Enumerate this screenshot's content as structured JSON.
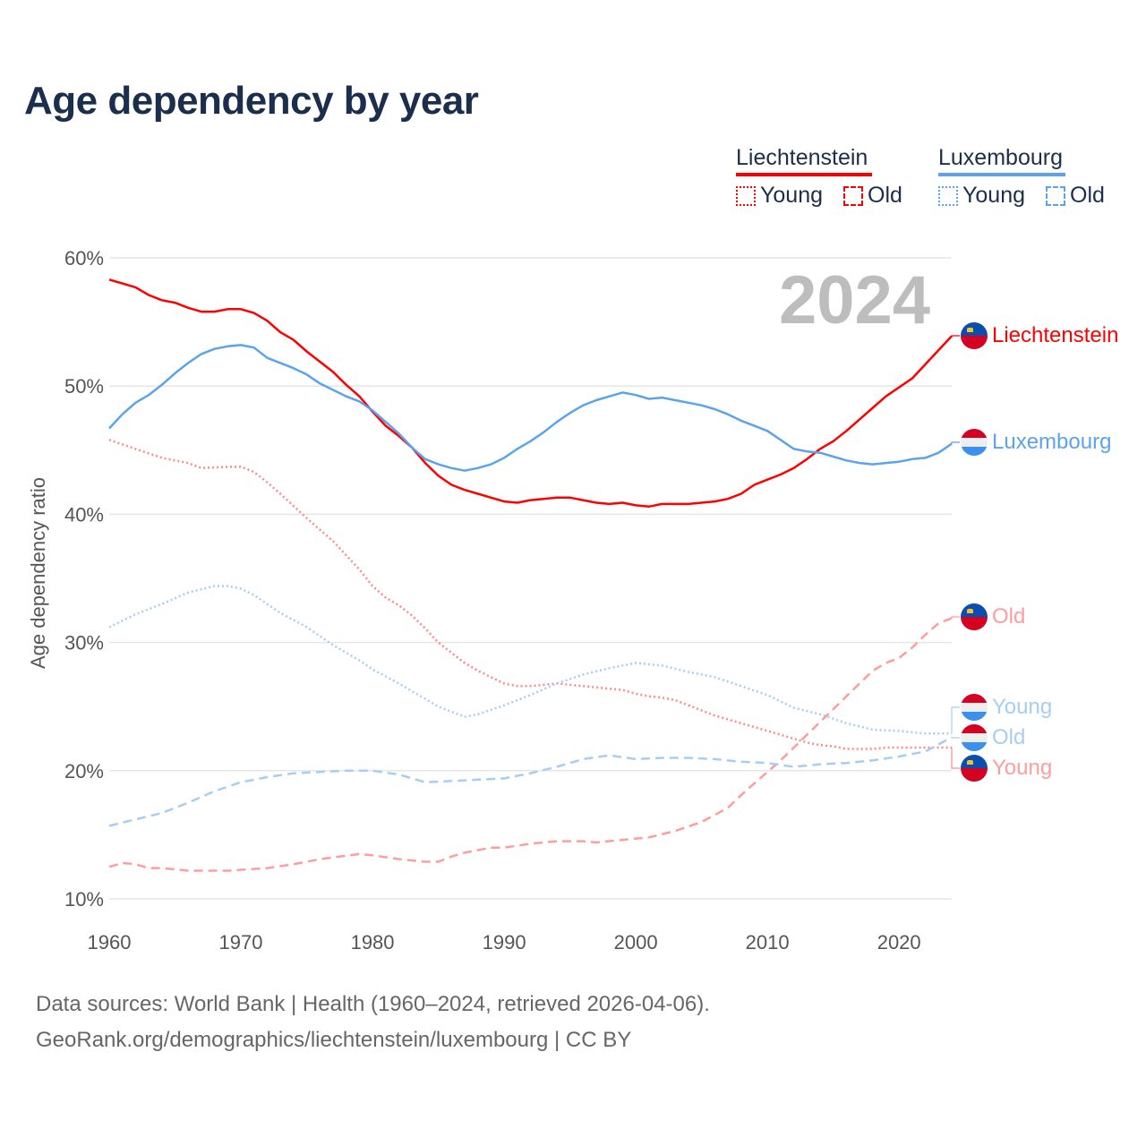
{
  "title": "Age dependency by year",
  "year_display": "2024",
  "legend": {
    "countries": [
      {
        "name": "Liechtenstein",
        "color": "#ff0000",
        "young": "Young",
        "old": "Old"
      },
      {
        "name": "Luxembourg",
        "color": "#5ba4ec",
        "young": "Young",
        "old": "Old"
      }
    ]
  },
  "end_labels": {
    "li_total": "Liechtenstein",
    "lu_total": "Luxembourg",
    "li_old": "Old",
    "lu_young": "Young",
    "lu_old": "Old",
    "li_young": "Young"
  },
  "footer": {
    "line1": "Data sources: World Bank | Health (1960–2024, retrieved 2026-04-06).",
    "line2": "GeoRank.org/demographics/liechtenstein/luxembourg | CC BY"
  },
  "chart_data": {
    "type": "line",
    "title": "Age dependency by year",
    "xlabel": "",
    "ylabel": "Age dependency ratio",
    "xlim": [
      1960,
      2024
    ],
    "ylim": [
      10,
      60
    ],
    "x_ticks": [
      "1960",
      "1970",
      "1980",
      "1990",
      "2000",
      "2010",
      "2020"
    ],
    "y_ticks": [
      "10%",
      "20%",
      "30%",
      "40%",
      "50%",
      "60%"
    ],
    "grid": true,
    "legend_position": "top-right",
    "series": [
      {
        "id": "li_total",
        "name": "Liechtenstein",
        "color": "#ff0000",
        "dash": "solid",
        "points": [
          [
            1960,
            58.3
          ],
          [
            1961,
            58.0
          ],
          [
            1962,
            57.7
          ],
          [
            1963,
            57.1
          ],
          [
            1964,
            56.7
          ],
          [
            1965,
            56.5
          ],
          [
            1966,
            56.1
          ],
          [
            1967,
            55.8
          ],
          [
            1968,
            55.8
          ],
          [
            1969,
            56.0
          ],
          [
            1970,
            56.0
          ],
          [
            1971,
            55.7
          ],
          [
            1972,
            55.1
          ],
          [
            1973,
            54.2
          ],
          [
            1974,
            53.6
          ],
          [
            1975,
            52.7
          ],
          [
            1976,
            51.9
          ],
          [
            1977,
            51.1
          ],
          [
            1978,
            50.1
          ],
          [
            1979,
            49.2
          ],
          [
            1980,
            48.0
          ],
          [
            1981,
            46.9
          ],
          [
            1982,
            46.1
          ],
          [
            1983,
            45.2
          ],
          [
            1984,
            44.0
          ],
          [
            1985,
            43.0
          ],
          [
            1986,
            42.3
          ],
          [
            1987,
            41.9
          ],
          [
            1988,
            41.6
          ],
          [
            1989,
            41.3
          ],
          [
            1990,
            41.0
          ],
          [
            1991,
            40.9
          ],
          [
            1992,
            41.1
          ],
          [
            1993,
            41.2
          ],
          [
            1994,
            41.3
          ],
          [
            1995,
            41.3
          ],
          [
            1996,
            41.1
          ],
          [
            1997,
            40.9
          ],
          [
            1998,
            40.8
          ],
          [
            1999,
            40.9
          ],
          [
            2000,
            40.7
          ],
          [
            2001,
            40.6
          ],
          [
            2002,
            40.8
          ],
          [
            2003,
            40.8
          ],
          [
            2004,
            40.8
          ],
          [
            2005,
            40.9
          ],
          [
            2006,
            41.0
          ],
          [
            2007,
            41.2
          ],
          [
            2008,
            41.6
          ],
          [
            2009,
            42.3
          ],
          [
            2010,
            42.7
          ],
          [
            2011,
            43.1
          ],
          [
            2012,
            43.6
          ],
          [
            2013,
            44.3
          ],
          [
            2014,
            45.1
          ],
          [
            2015,
            45.7
          ],
          [
            2016,
            46.5
          ],
          [
            2017,
            47.4
          ],
          [
            2018,
            48.3
          ],
          [
            2019,
            49.2
          ],
          [
            2020,
            49.9
          ],
          [
            2021,
            50.6
          ],
          [
            2022,
            51.7
          ],
          [
            2023,
            52.8
          ],
          [
            2024,
            53.9
          ]
        ]
      },
      {
        "id": "lu_total",
        "name": "Luxembourg",
        "color": "#5ba4ec",
        "dash": "solid",
        "points": [
          [
            1960,
            46.7
          ],
          [
            1961,
            47.8
          ],
          [
            1962,
            48.7
          ],
          [
            1963,
            49.3
          ],
          [
            1964,
            50.1
          ],
          [
            1965,
            51.0
          ],
          [
            1966,
            51.8
          ],
          [
            1967,
            52.5
          ],
          [
            1968,
            52.9
          ],
          [
            1969,
            53.1
          ],
          [
            1970,
            53.2
          ],
          [
            1971,
            53.0
          ],
          [
            1972,
            52.2
          ],
          [
            1973,
            51.8
          ],
          [
            1974,
            51.4
          ],
          [
            1975,
            50.9
          ],
          [
            1976,
            50.2
          ],
          [
            1977,
            49.7
          ],
          [
            1978,
            49.2
          ],
          [
            1979,
            48.8
          ],
          [
            1980,
            48.1
          ],
          [
            1981,
            47.2
          ],
          [
            1982,
            46.3
          ],
          [
            1983,
            45.2
          ],
          [
            1984,
            44.3
          ],
          [
            1985,
            43.9
          ],
          [
            1986,
            43.6
          ],
          [
            1987,
            43.4
          ],
          [
            1988,
            43.6
          ],
          [
            1989,
            43.9
          ],
          [
            1990,
            44.4
          ],
          [
            1991,
            45.1
          ],
          [
            1992,
            45.7
          ],
          [
            1993,
            46.4
          ],
          [
            1994,
            47.2
          ],
          [
            1995,
            47.9
          ],
          [
            1996,
            48.5
          ],
          [
            1997,
            48.9
          ],
          [
            1998,
            49.2
          ],
          [
            1999,
            49.5
          ],
          [
            2000,
            49.3
          ],
          [
            2001,
            49.0
          ],
          [
            2002,
            49.1
          ],
          [
            2003,
            48.9
          ],
          [
            2004,
            48.7
          ],
          [
            2005,
            48.5
          ],
          [
            2006,
            48.2
          ],
          [
            2007,
            47.8
          ],
          [
            2008,
            47.3
          ],
          [
            2009,
            46.9
          ],
          [
            2010,
            46.5
          ],
          [
            2011,
            45.8
          ],
          [
            2012,
            45.1
          ],
          [
            2013,
            44.9
          ],
          [
            2014,
            44.8
          ],
          [
            2015,
            44.5
          ],
          [
            2016,
            44.2
          ],
          [
            2017,
            44.0
          ],
          [
            2018,
            43.9
          ],
          [
            2019,
            44.0
          ],
          [
            2020,
            44.1
          ],
          [
            2021,
            44.3
          ],
          [
            2022,
            44.4
          ],
          [
            2023,
            44.8
          ],
          [
            2024,
            45.5
          ]
        ]
      },
      {
        "id": "li_young",
        "name": "Liechtenstein Young",
        "color": "#ff8a8a",
        "dash": "dotted",
        "points": [
          [
            1960,
            45.8
          ],
          [
            1962,
            45.1
          ],
          [
            1964,
            44.4
          ],
          [
            1966,
            44.0
          ],
          [
            1967,
            43.6
          ],
          [
            1969,
            43.7
          ],
          [
            1970,
            43.7
          ],
          [
            1971,
            43.3
          ],
          [
            1972,
            42.5
          ],
          [
            1973,
            41.6
          ],
          [
            1975,
            39.7
          ],
          [
            1977,
            37.9
          ],
          [
            1979,
            35.7
          ],
          [
            1980,
            34.4
          ],
          [
            1981,
            33.5
          ],
          [
            1982,
            32.9
          ],
          [
            1983,
            32.1
          ],
          [
            1984,
            31.1
          ],
          [
            1985,
            30.0
          ],
          [
            1986,
            29.2
          ],
          [
            1987,
            28.4
          ],
          [
            1988,
            27.8
          ],
          [
            1989,
            27.3
          ],
          [
            1990,
            26.8
          ],
          [
            1991,
            26.6
          ],
          [
            1992,
            26.6
          ],
          [
            1994,
            26.8
          ],
          [
            1995,
            26.7
          ],
          [
            1996,
            26.6
          ],
          [
            1998,
            26.4
          ],
          [
            1999,
            26.3
          ],
          [
            2000,
            26.0
          ],
          [
            2001,
            25.8
          ],
          [
            2002,
            25.7
          ],
          [
            2003,
            25.5
          ],
          [
            2004,
            25.1
          ],
          [
            2005,
            24.7
          ],
          [
            2006,
            24.3
          ],
          [
            2007,
            24.0
          ],
          [
            2008,
            23.7
          ],
          [
            2009,
            23.4
          ],
          [
            2010,
            23.1
          ],
          [
            2011,
            22.8
          ],
          [
            2012,
            22.5
          ],
          [
            2013,
            22.2
          ],
          [
            2014,
            22.0
          ],
          [
            2015,
            21.9
          ],
          [
            2016,
            21.7
          ],
          [
            2018,
            21.7
          ],
          [
            2019,
            21.8
          ],
          [
            2024,
            21.8
          ]
        ]
      },
      {
        "id": "li_old",
        "name": "Liechtenstein Old",
        "color": "#ff9d9d",
        "dash": "dashed",
        "points": [
          [
            1960,
            12.5
          ],
          [
            1961,
            12.8
          ],
          [
            1962,
            12.7
          ],
          [
            1963,
            12.4
          ],
          [
            1964,
            12.4
          ],
          [
            1966,
            12.2
          ],
          [
            1969,
            12.2
          ],
          [
            1972,
            12.4
          ],
          [
            1974,
            12.7
          ],
          [
            1976,
            13.1
          ],
          [
            1979,
            13.5
          ],
          [
            1980,
            13.4
          ],
          [
            1982,
            13.1
          ],
          [
            1984,
            12.9
          ],
          [
            1985,
            12.9
          ],
          [
            1986,
            13.3
          ],
          [
            1987,
            13.6
          ],
          [
            1989,
            14.0
          ],
          [
            1990,
            14.0
          ],
          [
            1992,
            14.3
          ],
          [
            1994,
            14.5
          ],
          [
            1996,
            14.5
          ],
          [
            1997,
            14.4
          ],
          [
            1999,
            14.6
          ],
          [
            2001,
            14.8
          ],
          [
            2003,
            15.3
          ],
          [
            2005,
            16.0
          ],
          [
            2007,
            17.1
          ],
          [
            2008,
            18.1
          ],
          [
            2009,
            19.0
          ],
          [
            2010,
            19.9
          ],
          [
            2011,
            20.8
          ],
          [
            2012,
            21.8
          ],
          [
            2013,
            22.8
          ],
          [
            2014,
            23.8
          ],
          [
            2015,
            24.8
          ],
          [
            2016,
            25.8
          ],
          [
            2017,
            26.8
          ],
          [
            2018,
            27.8
          ],
          [
            2019,
            28.4
          ],
          [
            2020,
            28.8
          ],
          [
            2021,
            29.6
          ],
          [
            2022,
            30.6
          ],
          [
            2023,
            31.5
          ],
          [
            2024,
            31.9
          ]
        ]
      },
      {
        "id": "lu_young",
        "name": "Luxembourg Young",
        "color": "#a8cdf2",
        "dash": "dotted",
        "points": [
          [
            1960,
            31.2
          ],
          [
            1962,
            32.2
          ],
          [
            1964,
            33.0
          ],
          [
            1966,
            33.9
          ],
          [
            1968,
            34.4
          ],
          [
            1969,
            34.4
          ],
          [
            1970,
            34.2
          ],
          [
            1971,
            33.7
          ],
          [
            1972,
            33.0
          ],
          [
            1973,
            32.3
          ],
          [
            1975,
            31.2
          ],
          [
            1977,
            29.8
          ],
          [
            1979,
            28.6
          ],
          [
            1980,
            27.9
          ],
          [
            1982,
            26.8
          ],
          [
            1984,
            25.6
          ],
          [
            1985,
            25.0
          ],
          [
            1987,
            24.2
          ],
          [
            1988,
            24.4
          ],
          [
            1990,
            25.1
          ],
          [
            1992,
            25.9
          ],
          [
            1994,
            26.8
          ],
          [
            1996,
            27.5
          ],
          [
            1998,
            28.0
          ],
          [
            2000,
            28.4
          ],
          [
            2002,
            28.2
          ],
          [
            2004,
            27.7
          ],
          [
            2006,
            27.3
          ],
          [
            2008,
            26.6
          ],
          [
            2010,
            25.9
          ],
          [
            2012,
            24.9
          ],
          [
            2014,
            24.4
          ],
          [
            2016,
            23.7
          ],
          [
            2018,
            23.2
          ],
          [
            2020,
            23.1
          ],
          [
            2022,
            22.9
          ],
          [
            2024,
            22.9
          ]
        ]
      },
      {
        "id": "lu_old",
        "name": "Luxembourg Old",
        "color": "#a8cdf2",
        "dash": "dashed",
        "points": [
          [
            1960,
            15.7
          ],
          [
            1962,
            16.2
          ],
          [
            1964,
            16.7
          ],
          [
            1966,
            17.5
          ],
          [
            1968,
            18.4
          ],
          [
            1970,
            19.1
          ],
          [
            1972,
            19.5
          ],
          [
            1974,
            19.8
          ],
          [
            1976,
            19.9
          ],
          [
            1978,
            20.0
          ],
          [
            1980,
            20.0
          ],
          [
            1982,
            19.7
          ],
          [
            1984,
            19.1
          ],
          [
            1986,
            19.2
          ],
          [
            1988,
            19.3
          ],
          [
            1990,
            19.4
          ],
          [
            1992,
            19.8
          ],
          [
            1994,
            20.3
          ],
          [
            1996,
            20.9
          ],
          [
            1998,
            21.2
          ],
          [
            2000,
            20.9
          ],
          [
            2002,
            21.0
          ],
          [
            2004,
            21.0
          ],
          [
            2006,
            20.9
          ],
          [
            2008,
            20.7
          ],
          [
            2010,
            20.6
          ],
          [
            2012,
            20.3
          ],
          [
            2014,
            20.5
          ],
          [
            2016,
            20.6
          ],
          [
            2018,
            20.8
          ],
          [
            2020,
            21.1
          ],
          [
            2022,
            21.5
          ],
          [
            2024,
            22.6
          ]
        ]
      }
    ]
  }
}
